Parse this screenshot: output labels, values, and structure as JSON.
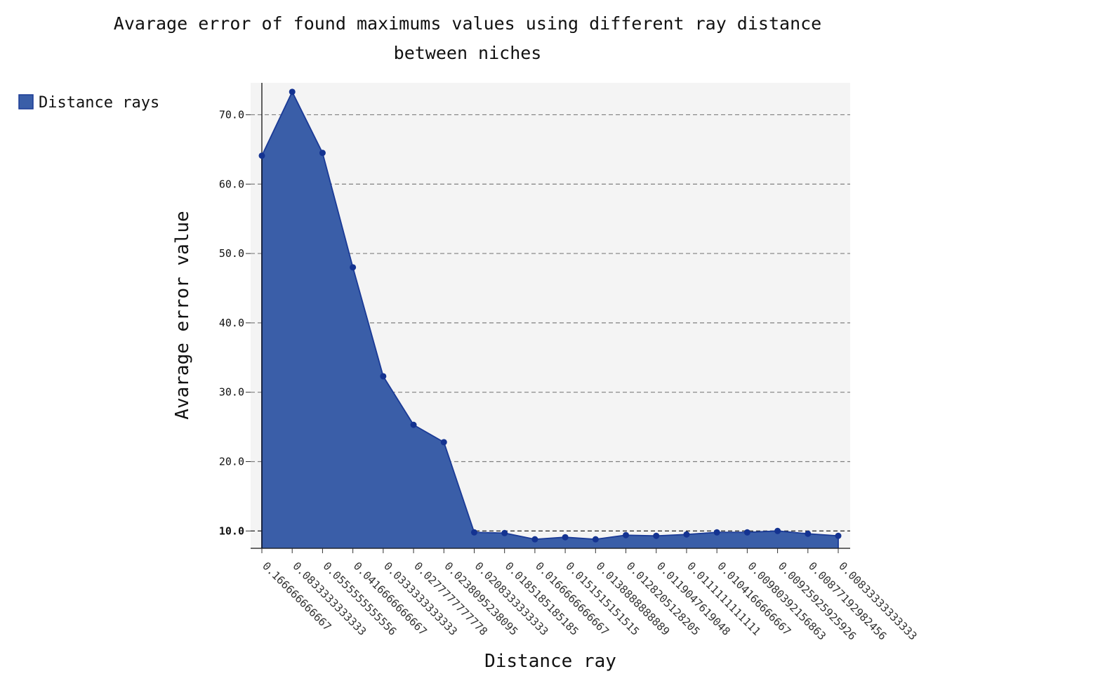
{
  "chart_data": {
    "type": "area",
    "title": "Avarage error of found maximums values using different ray distance between niches",
    "title_lines": [
      "Avarage error of found maximums values using different ray distance",
      "between niches"
    ],
    "xlabel": "Distance ray",
    "ylabel": "Avarage error value",
    "categories": [
      "0.166666666667",
      "0.0833333333333",
      "0.0555555555556",
      "0.0416666666667",
      "0.0333333333333",
      "0.0277777777778",
      "0.0238095238095",
      "0.0208333333333",
      "0.0185185185185",
      "0.0166666666667",
      "0.0151515151515",
      "0.0138888888889",
      "0.0128205128205",
      "0.0119047619048",
      "0.0111111111111",
      "0.0104166666667",
      "0.00980392156863",
      "0.00925925925926",
      "0.00877192982456",
      "0.00833333333333"
    ],
    "series": [
      {
        "name": "Distance rays",
        "values": [
          64.1,
          73.3,
          64.5,
          48.0,
          32.3,
          25.3,
          22.8,
          9.8,
          9.7,
          8.8,
          9.1,
          8.8,
          9.4,
          9.3,
          9.5,
          9.8,
          9.8,
          10.0,
          9.6,
          9.3
        ]
      }
    ],
    "ylim": [
      7.5,
      74.6
    ],
    "yticks": [
      {
        "label": "10.0",
        "value": 10,
        "major": true
      },
      {
        "label": "20.0",
        "value": 20,
        "major": false
      },
      {
        "label": "30.0",
        "value": 30,
        "major": false
      },
      {
        "label": "40.0",
        "value": 40,
        "major": false
      },
      {
        "label": "50.0",
        "value": 50,
        "major": false
      },
      {
        "label": "60.0",
        "value": 60,
        "major": false
      },
      {
        "label": "70.0",
        "value": 70,
        "major": false
      }
    ],
    "grid": "horizontal-dashed",
    "legend": "top-left",
    "colors": {
      "fill": "#3a5ea8",
      "line": "#1a3a96",
      "point": "#143391",
      "plot_background": "#f4f4f4",
      "grid": "#7f7f7f"
    }
  }
}
